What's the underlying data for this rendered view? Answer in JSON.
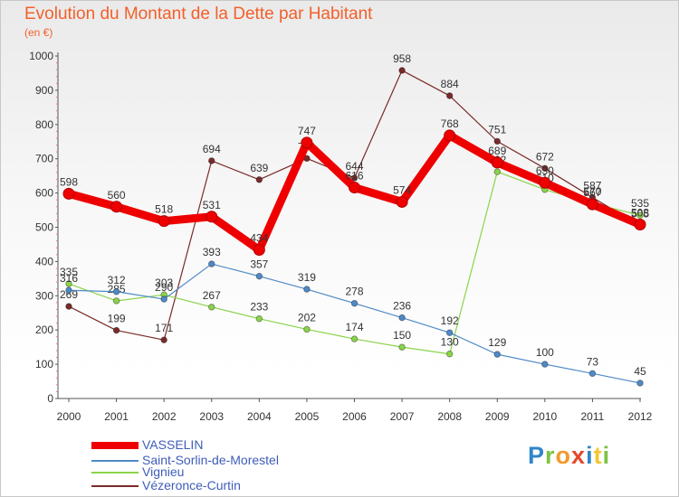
{
  "title": "Evolution du Montant de la Dette par Habitant",
  "unit": "(en €)",
  "brand": "Proxiti",
  "chart_data": {
    "type": "line",
    "x": [
      "2000",
      "2001",
      "2002",
      "2003",
      "2004",
      "2005",
      "2006",
      "2007",
      "2008",
      "2009",
      "2010",
      "2011",
      "2012"
    ],
    "ylim": [
      0,
      1000
    ],
    "yticks": [
      0,
      100,
      200,
      300,
      400,
      500,
      600,
      700,
      800,
      900,
      1000
    ],
    "grid": false,
    "legend": "bottom-left",
    "series": [
      {
        "name": "VASSELIN",
        "color": "#ee0000",
        "values": [
          598,
          560,
          518,
          531,
          434,
          747,
          616,
          574,
          768,
          689,
          630,
          567,
          508
        ],
        "labels": [
          "598",
          "560",
          "518",
          "531",
          "434",
          "747",
          "616",
          "574",
          "768",
          "689",
          "630",
          "567",
          "508"
        ]
      },
      {
        "name": "Saint-Sorlin-de-Morestel",
        "color": "#4f8ac6",
        "values": [
          316,
          312,
          290,
          393,
          357,
          319,
          278,
          236,
          192,
          129,
          100,
          73,
          45
        ],
        "labels": [
          "316",
          "312",
          "290",
          "393",
          "357",
          "319",
          "278",
          "236",
          "192",
          "129",
          "100",
          "73",
          "45"
        ]
      },
      {
        "name": "Vignieu",
        "color": "#8ad44a",
        "values": [
          335,
          285,
          303,
          267,
          233,
          202,
          174,
          150,
          130,
          662,
          610,
          570,
          535
        ],
        "labels": [
          "335",
          "285",
          "303",
          "267",
          "233",
          "202",
          "174",
          "150",
          "130",
          "662",
          "610",
          "570",
          "535"
        ]
      },
      {
        "name": "Vézeronce-Curtin",
        "color": "#7a2a2a",
        "values": [
          269,
          199,
          171,
          694,
          639,
          701,
          644,
          958,
          884,
          751,
          672,
          587,
          505
        ],
        "labels": [
          "269",
          "199",
          "171",
          "694",
          "639",
          "701",
          "644",
          "958",
          "884",
          "751",
          "672",
          "587",
          "505"
        ]
      }
    ]
  }
}
